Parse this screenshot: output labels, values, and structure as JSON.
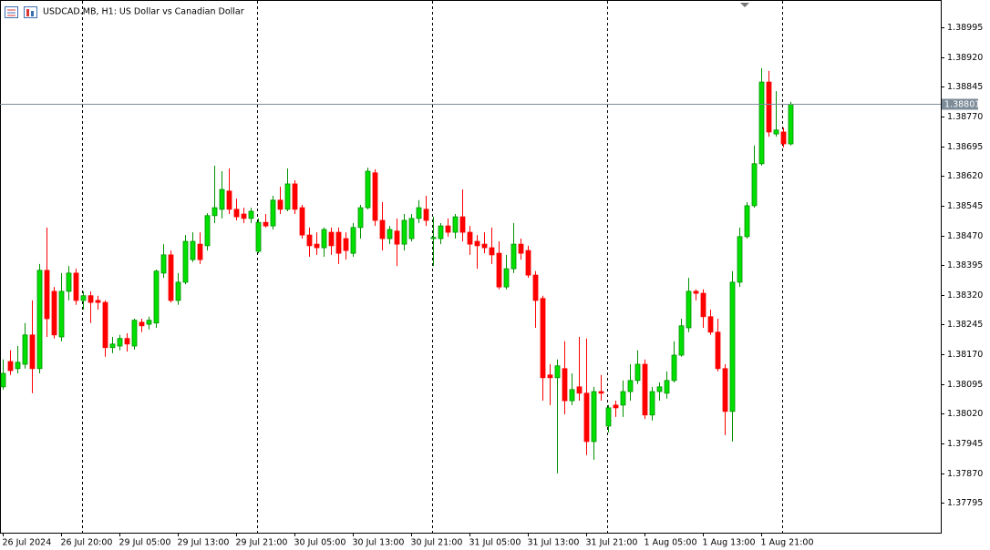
{
  "chart_data": {
    "type": "candlestick",
    "title": "USDCAD.MB, H1:  US Dollar vs Canadian Dollar",
    "categories": [
      "26 Jul 2024",
      null,
      null,
      null,
      null,
      null,
      null,
      null,
      "26 Jul 20:00",
      null,
      null,
      null,
      null,
      null,
      null,
      null,
      "29 Jul 05:00",
      null,
      null,
      null,
      null,
      null,
      null,
      null,
      "29 Jul 13:00",
      null,
      null,
      null,
      null,
      null,
      null,
      null,
      "29 Jul 21:00",
      null,
      null,
      null,
      null,
      null,
      null,
      null,
      "30 Jul 05:00",
      null,
      null,
      null,
      null,
      null,
      null,
      null,
      "30 Jul 13:00",
      null,
      null,
      null,
      null,
      null,
      null,
      null,
      "30 Jul 21:00",
      null,
      null,
      null,
      null,
      null,
      null,
      null,
      "31 Jul 05:00",
      null,
      null,
      null,
      null,
      null,
      null,
      null,
      "31 Jul 13:00",
      null,
      null,
      null,
      null,
      null,
      null,
      null,
      "31 Jul 21:00",
      null,
      null,
      null,
      null,
      null,
      null,
      null,
      "1 Aug 05:00",
      null,
      null,
      null,
      null,
      null,
      null,
      null,
      "1 Aug 13:00",
      null,
      null,
      null,
      null,
      null,
      null,
      null,
      "1 Aug 21:00",
      null,
      null,
      null,
      null
    ],
    "open": [
      1.38088,
      1.38152,
      1.38134,
      1.38145,
      1.38219,
      1.38134,
      1.38382,
      1.38329,
      1.38214,
      1.38329,
      1.38375,
      1.38306,
      1.38318,
      1.38306,
      1.38301,
      1.38187,
      1.38191,
      1.3821,
      1.38191,
      1.38251,
      1.38246,
      1.38249,
      1.38375,
      1.38421,
      1.38306,
      1.38352,
      1.38409,
      1.38448,
      1.38444,
      1.3852,
      1.38536,
      1.38582,
      1.38536,
      1.38524,
      1.38513,
      1.3843,
      1.38503,
      1.38494,
      1.38559,
      1.38536,
      1.386,
      1.3854,
      1.38471,
      1.38448,
      1.38439,
      1.38478,
      1.38478,
      1.38462,
      1.38425,
      1.3849,
      1.3854,
      1.38628,
      1.38508,
      1.38462,
      1.38481,
      1.38448,
      1.38462,
      1.38513,
      1.38536,
      1.38462,
      1.38462,
      1.38494,
      1.38478,
      1.38517,
      1.38478,
      1.38455,
      1.38448,
      1.38439,
      1.38425,
      1.3834,
      1.38386,
      1.38448,
      1.38432,
      1.3837,
      1.38311,
      1.38118,
      1.38111,
      1.38134,
      1.38053,
      1.38088,
      1.38072,
      1.3795,
      1.38076,
      1.37989,
      1.38042,
      1.38042,
      1.38076,
      1.38104,
      1.38145,
      1.38017,
      1.38076,
      1.38072,
      1.38104,
      1.38168,
      1.38237,
      1.38329,
      1.38324,
      1.38265,
      1.38226,
      1.38134,
      1.38026,
      1.38352,
      1.38467,
      1.38545,
      1.38651,
      1.38857,
      1.38726,
      1.38731,
      1.38701
    ],
    "high": [
      1.38157,
      1.3818,
      1.38191,
      1.38249,
      1.38306,
      1.38398,
      1.3849,
      1.3834,
      1.38375,
      1.38393,
      1.38386,
      1.38329,
      1.38329,
      1.38318,
      1.38306,
      1.38214,
      1.38219,
      1.38223,
      1.3826,
      1.3826,
      1.38265,
      1.38384,
      1.38448,
      1.38432,
      1.38375,
      1.38471,
      1.38478,
      1.38478,
      1.38526,
      1.38646,
      1.38632,
      1.38639,
      1.38563,
      1.3854,
      1.3854,
      1.38513,
      1.38524,
      1.3857,
      1.38593,
      1.38639,
      1.38609,
      1.38547,
      1.3849,
      1.38478,
      1.3849,
      1.3849,
      1.3849,
      1.38478,
      1.38501,
      1.38547,
      1.38641,
      1.38637,
      1.38554,
      1.38494,
      1.38513,
      1.38524,
      1.38524,
      1.38559,
      1.3857,
      1.38517,
      1.38501,
      1.38513,
      1.38524,
      1.38586,
      1.38494,
      1.38471,
      1.38478,
      1.3849,
      1.38455,
      1.38421,
      1.38501,
      1.38462,
      1.38444,
      1.3838,
      1.38318,
      1.38145,
      1.38157,
      1.38203,
      1.38122,
      1.38214,
      1.3821,
      1.38088,
      1.38118,
      1.38042,
      1.38053,
      1.38104,
      1.38145,
      1.3818,
      1.38157,
      1.38088,
      1.38099,
      1.38127,
      1.38203,
      1.3826,
      1.38363,
      1.38334,
      1.38334,
      1.38283,
      1.3826,
      1.38145,
      1.3838,
      1.3849,
      1.38554,
      1.38697,
      1.38892,
      1.38885,
      1.38834,
      1.38742,
      1.38807
    ],
    "low": [
      1.38081,
      1.38118,
      1.38122,
      1.38134,
      1.38072,
      1.38122,
      1.38214,
      1.3821,
      1.38203,
      1.38306,
      1.38295,
      1.38283,
      1.38249,
      1.38283,
      1.38164,
      1.38173,
      1.3818,
      1.38177,
      1.38182,
      1.38226,
      1.38233,
      1.38237,
      1.38363,
      1.38301,
      1.38295,
      1.38347,
      1.38403,
      1.38398,
      1.38432,
      1.38501,
      1.38513,
      1.38524,
      1.38508,
      1.38501,
      1.38501,
      1.38425,
      1.3849,
      1.38485,
      1.38524,
      1.38531,
      1.38524,
      1.38462,
      1.38416,
      1.38421,
      1.38416,
      1.38421,
      1.38398,
      1.38409,
      1.38416,
      1.38462,
      1.38536,
      1.38494,
      1.38432,
      1.38448,
      1.38393,
      1.38432,
      1.38455,
      1.38501,
      1.38494,
      1.38393,
      1.38448,
      1.38467,
      1.38462,
      1.38455,
      1.38421,
      1.38386,
      1.38425,
      1.38398,
      1.38334,
      1.38334,
      1.38375,
      1.38409,
      1.38363,
      1.38237,
      1.38053,
      1.38042,
      1.3787,
      1.38019,
      1.38042,
      1.38053,
      1.37916,
      1.37904,
      1.38053,
      1.37973,
      1.38012,
      1.38012,
      1.38053,
      1.38095,
      1.38007,
      1.38003,
      1.38053,
      1.38058,
      1.38099,
      1.38164,
      1.38226,
      1.38306,
      1.38237,
      1.38219,
      1.38127,
      1.37966,
      1.3795,
      1.3834,
      1.38462,
      1.3854,
      1.38646,
      1.38719,
      1.38719,
      1.38692,
      1.38697
    ],
    "close": [
      1.38122,
      1.38129,
      1.3815,
      1.38219,
      1.38134,
      1.38382,
      1.3826,
      1.38219,
      1.38329,
      1.38375,
      1.38306,
      1.38318,
      1.38301,
      1.38301,
      1.38187,
      1.38196,
      1.3821,
      1.38196,
      1.38256,
      1.38242,
      1.38256,
      1.3838,
      1.38421,
      1.38306,
      1.38352,
      1.38455,
      1.38455,
      1.38409,
      1.3852,
      1.3854,
      1.38586,
      1.38536,
      1.38517,
      1.38513,
      1.38531,
      1.38503,
      1.38494,
      1.38559,
      1.38536,
      1.386,
      1.38536,
      1.38471,
      1.38444,
      1.38439,
      1.38485,
      1.38444,
      1.38425,
      1.38432,
      1.3849,
      1.3854,
      1.38632,
      1.38508,
      1.38462,
      1.38485,
      1.38448,
      1.38508,
      1.38513,
      1.3854,
      1.38508,
      1.38465,
      1.38494,
      1.38478,
      1.38517,
      1.38478,
      1.38448,
      1.38444,
      1.38439,
      1.38421,
      1.3834,
      1.38386,
      1.38448,
      1.38425,
      1.3837,
      1.38306,
      1.38111,
      1.38111,
      1.38141,
      1.38053,
      1.38081,
      1.38072,
      1.3795,
      1.38076,
      1.38072,
      1.38035,
      1.38035,
      1.38076,
      1.38104,
      1.38145,
      1.38017,
      1.38076,
      1.38088,
      1.38104,
      1.38168,
      1.38242,
      1.38329,
      1.38324,
      1.38265,
      1.38226,
      1.38134,
      1.38026,
      1.38352,
      1.38467,
      1.38545,
      1.38651,
      1.38857,
      1.38731,
      1.38736,
      1.38701,
      1.38801
    ],
    "up_color": "#00e000",
    "down_color": "#ff0000",
    "current_price": 1.38801,
    "ylim": [
      1.3772,
      1.39064
    ],
    "yticks": [
      1.38995,
      {
        "value": 1.3892,
        "label": "1.38920"
      },
      1.38845,
      {
        "value": 1.3877,
        "label": "1.38770"
      },
      1.38695,
      {
        "value": 1.3862,
        "label": "1.38620"
      },
      1.38545,
      {
        "value": 1.3847,
        "label": "1.38470"
      },
      1.38395,
      {
        "value": 1.3832,
        "label": "1.38320"
      },
      1.38245,
      {
        "value": 1.3817,
        "label": "1.38170"
      },
      1.38095,
      {
        "value": 1.3802,
        "label": "1.38020"
      },
      1.37945,
      {
        "value": 1.3787,
        "label": "1.37870"
      },
      1.37795
    ]
  }
}
